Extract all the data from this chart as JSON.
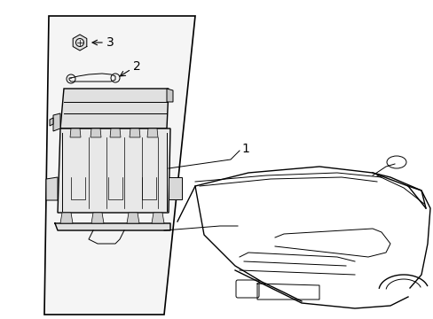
{
  "background_color": "#ffffff",
  "line_color": "#000000",
  "figsize": [
    4.89,
    3.6
  ],
  "dpi": 100,
  "label_1": "1",
  "label_2": "2",
  "label_3": "3"
}
